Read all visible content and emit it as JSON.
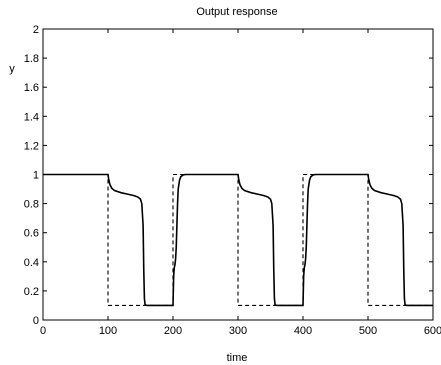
{
  "chart_data": {
    "type": "line",
    "title": "Output response",
    "xlabel": "time",
    "ylabel": "y",
    "xlim": [
      0,
      600
    ],
    "ylim": [
      0,
      2
    ],
    "xticks": [
      0,
      100,
      200,
      300,
      400,
      500,
      600
    ],
    "yticks": [
      0,
      0.2,
      0.4,
      0.6,
      0.8,
      1,
      1.2,
      1.4,
      1.6,
      1.8,
      2
    ],
    "xtick_labels": [
      "0",
      "100",
      "200",
      "300",
      "400",
      "500",
      "600"
    ],
    "ytick_labels": [
      "0",
      "0.2",
      "0.4",
      "0.6",
      "0.8",
      "1",
      "1.2",
      "1.4",
      "1.6",
      "1.8",
      "2"
    ],
    "grid": false,
    "legend": "none",
    "series": [
      {
        "style": "solid",
        "color": "#000000",
        "x": [
          0,
          100,
          101,
          103,
          106,
          110,
          120,
          130,
          140,
          146,
          150,
          152,
          154,
          155,
          156,
          157,
          160,
          180,
          200,
          200.5,
          201,
          202,
          203,
          204,
          205,
          206,
          207,
          208,
          210,
          212,
          216,
          220,
          300,
          301,
          303,
          306,
          310,
          320,
          330,
          340,
          346,
          350,
          352,
          354,
          355,
          356,
          357,
          360,
          380,
          400,
          400.5,
          401,
          402,
          403,
          404,
          405,
          406,
          407,
          408,
          410,
          412,
          416,
          420,
          500,
          501,
          503,
          506,
          510,
          520,
          530,
          540,
          546,
          550,
          552,
          554,
          555,
          556,
          557,
          560,
          580,
          600
        ],
        "y": [
          1.0,
          1.0,
          0.97,
          0.93,
          0.905,
          0.89,
          0.875,
          0.865,
          0.855,
          0.845,
          0.83,
          0.8,
          0.65,
          0.35,
          0.15,
          0.105,
          0.1,
          0.1,
          0.1,
          0.2,
          0.3,
          0.36,
          0.38,
          0.42,
          0.5,
          0.65,
          0.8,
          0.9,
          0.96,
          0.985,
          0.998,
          1.0,
          1.0,
          0.97,
          0.93,
          0.905,
          0.89,
          0.875,
          0.865,
          0.855,
          0.845,
          0.83,
          0.8,
          0.65,
          0.35,
          0.15,
          0.105,
          0.1,
          0.1,
          0.1,
          0.2,
          0.3,
          0.36,
          0.38,
          0.42,
          0.5,
          0.65,
          0.8,
          0.9,
          0.96,
          0.985,
          0.998,
          1.0,
          1.0,
          0.97,
          0.93,
          0.905,
          0.89,
          0.875,
          0.865,
          0.855,
          0.845,
          0.83,
          0.8,
          0.65,
          0.35,
          0.15,
          0.105,
          0.1,
          0.1,
          0.1
        ]
      },
      {
        "style": "dashed",
        "color": "#000000",
        "x": [
          0,
          100,
          100,
          200,
          200,
          300,
          300,
          400,
          400,
          500,
          500,
          600
        ],
        "y": [
          1.0,
          1.0,
          0.1,
          0.1,
          1.0,
          1.0,
          0.1,
          0.1,
          1.0,
          1.0,
          0.1,
          0.1
        ]
      }
    ]
  }
}
